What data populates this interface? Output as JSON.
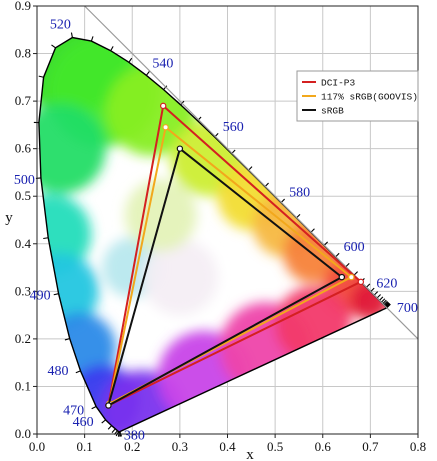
{
  "chart_data": {
    "type": "scatter",
    "title": "",
    "xlabel": "x",
    "ylabel": "y",
    "xlim": [
      0.0,
      0.8
    ],
    "ylim": [
      0.0,
      0.9
    ],
    "x_ticks": [
      "0.0",
      "0.1",
      "0.2",
      "0.3",
      "0.4",
      "0.5",
      "0.6",
      "0.7",
      "0.8"
    ],
    "y_ticks": [
      "0.0",
      "0.1",
      "0.2",
      "0.3",
      "0.4",
      "0.5",
      "0.6",
      "0.7",
      "0.8",
      "0.9"
    ],
    "grid": true,
    "legend_position": "top-right",
    "wavelength_labels": [
      {
        "text": "380",
        "x": 0.1741,
        "y": 0.005
      },
      {
        "text": "460",
        "x": 0.144,
        "y": 0.0297
      },
      {
        "text": "470",
        "x": 0.1241,
        "y": 0.0578
      },
      {
        "text": "480",
        "x": 0.0913,
        "y": 0.1327
      },
      {
        "text": "490",
        "x": 0.0454,
        "y": 0.295
      },
      {
        "text": "500",
        "x": 0.0082,
        "y": 0.5384
      },
      {
        "text": "520",
        "x": 0.0743,
        "y": 0.8338
      },
      {
        "text": "540",
        "x": 0.2296,
        "y": 0.7543
      },
      {
        "text": "560",
        "x": 0.3731,
        "y": 0.6245
      },
      {
        "text": "580",
        "x": 0.5125,
        "y": 0.4866
      },
      {
        "text": "600",
        "x": 0.627,
        "y": 0.3725
      },
      {
        "text": "620",
        "x": 0.6915,
        "y": 0.3083
      },
      {
        "text": "700",
        "x": 0.7347,
        "y": 0.2653
      }
    ],
    "series": [
      {
        "name": "DCI-P3",
        "color": "#d42020",
        "points": [
          [
            0.68,
            0.32
          ],
          [
            0.265,
            0.69
          ],
          [
            0.15,
            0.06
          ]
        ]
      },
      {
        "name": "117% sRGB(GOOVIS)",
        "color": "#f2a81c",
        "points": [
          [
            0.66,
            0.33
          ],
          [
            0.27,
            0.645
          ],
          [
            0.152,
            0.064
          ]
        ]
      },
      {
        "name": "sRGB",
        "color": "#111111",
        "points": [
          [
            0.64,
            0.33
          ],
          [
            0.3,
            0.6
          ],
          [
            0.15,
            0.06
          ]
        ]
      }
    ]
  }
}
